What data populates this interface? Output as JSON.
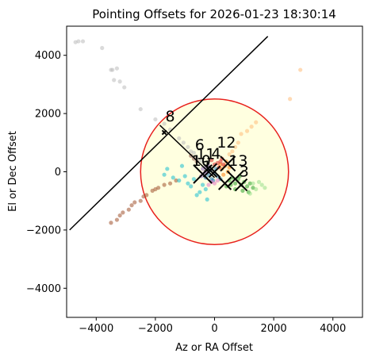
{
  "chart_data": {
    "type": "scatter",
    "title": "Pointing Offsets for 2026-01-23 18:30:14",
    "xlabel": "Az or RA Offset",
    "ylabel": "El or Dec Offset",
    "xlim": [
      -5000,
      5000
    ],
    "ylim": [
      -5000,
      5000
    ],
    "x_ticks": [
      -4000,
      -2000,
      0,
      2000,
      4000
    ],
    "y_ticks": [
      -4000,
      -2000,
      0,
      2000,
      4000
    ],
    "x_tick_labels": [
      "−4000",
      "−2000",
      "0",
      "2000",
      "4000"
    ],
    "y_tick_labels": [
      "−4000",
      "−2000",
      "0",
      "2000",
      "4000"
    ],
    "grid": false,
    "circle": {
      "center": [
        0,
        0
      ],
      "radius": 2500,
      "fill": "#ffffe0",
      "stroke": "#e8211d"
    },
    "reference_line": {
      "x": [
        -4900,
        1800
      ],
      "y": [
        -2000,
        4650
      ],
      "color": "#000000"
    },
    "perpendicular_line": {
      "x": [
        -1850,
        0
      ],
      "y": [
        1600,
        -200
      ],
      "color": "#000000"
    },
    "series": [
      {
        "color": "#bcbcbc",
        "points": [
          [
            -4700,
            4450
          ],
          [
            -4600,
            4480
          ],
          [
            -4450,
            4480
          ],
          [
            -3800,
            4250
          ],
          [
            -3450,
            3500
          ],
          [
            -3300,
            3550
          ],
          [
            -3400,
            3150
          ],
          [
            -3200,
            3100
          ],
          [
            -3050,
            2900
          ],
          [
            -2500,
            2150
          ],
          [
            -3500,
            3500
          ],
          [
            -2000,
            1800
          ],
          [
            -1700,
            1650
          ],
          [
            -1500,
            1450
          ],
          [
            -1200,
            1150
          ],
          [
            -1050,
            1000
          ],
          [
            -900,
            850
          ],
          [
            -800,
            700
          ],
          [
            -700,
            650
          ],
          [
            -600,
            500
          ],
          [
            -500,
            400
          ],
          [
            -400,
            350
          ]
        ]
      },
      {
        "color": "#ffbb78",
        "points": [
          [
            2900,
            3500
          ],
          [
            2550,
            2500
          ],
          [
            1400,
            1700
          ],
          [
            1250,
            1550
          ],
          [
            900,
            1300
          ],
          [
            1100,
            1400
          ],
          [
            800,
            1000
          ],
          [
            700,
            850
          ],
          [
            600,
            700
          ],
          [
            500,
            600
          ]
        ]
      },
      {
        "color": "#a0522d",
        "points": [
          [
            -3500,
            -1750
          ],
          [
            -3300,
            -1650
          ],
          [
            -3100,
            -1400
          ],
          [
            -2900,
            -1300
          ],
          [
            -2700,
            -1050
          ],
          [
            -2500,
            -1000
          ],
          [
            -2300,
            -800
          ],
          [
            -2100,
            -650
          ],
          [
            -1900,
            -550
          ],
          [
            -1700,
            -450
          ],
          [
            -1500,
            -400
          ],
          [
            -1300,
            -300
          ],
          [
            -3200,
            -1500
          ],
          [
            -2800,
            -1150
          ],
          [
            -2400,
            -850
          ],
          [
            -2000,
            -600
          ]
        ]
      },
      {
        "color": "#17becf",
        "points": [
          [
            -1400,
            -200
          ],
          [
            -1200,
            -300
          ],
          [
            -1000,
            -150
          ],
          [
            -900,
            -400
          ],
          [
            -800,
            -500
          ],
          [
            -700,
            -250
          ],
          [
            -600,
            -800
          ],
          [
            -500,
            -700
          ],
          [
            -400,
            -450
          ],
          [
            -300,
            -600
          ],
          [
            -250,
            -950
          ],
          [
            -1600,
            100
          ],
          [
            -1700,
            -100
          ],
          [
            -1100,
            200
          ]
        ]
      },
      {
        "color": "#1f77b4",
        "points": [
          [
            -300,
            -200
          ],
          [
            -200,
            -100
          ],
          [
            -100,
            -250
          ],
          [
            0,
            -50
          ],
          [
            100,
            -150
          ],
          [
            -150,
            50
          ],
          [
            50,
            100
          ],
          [
            -50,
            -300
          ],
          [
            200,
            -250
          ]
        ]
      },
      {
        "color": "#9467bd",
        "points": [
          [
            -400,
            100
          ],
          [
            -300,
            150
          ],
          [
            -350,
            -50
          ],
          [
            -250,
            0
          ],
          [
            -200,
            200
          ],
          [
            -450,
            -150
          ]
        ]
      },
      {
        "color": "#ff7f0e",
        "points": [
          [
            250,
            100
          ],
          [
            350,
            200
          ],
          [
            450,
            0
          ],
          [
            300,
            -100
          ],
          [
            200,
            250
          ],
          [
            400,
            350
          ],
          [
            500,
            150
          ]
        ]
      },
      {
        "color": "#d62728",
        "points": [
          [
            100,
            300
          ],
          [
            200,
            350
          ],
          [
            300,
            250
          ],
          [
            150,
            150
          ],
          [
            250,
            450
          ],
          [
            -100,
            400
          ],
          [
            0,
            250
          ]
        ]
      },
      {
        "color": "#2ca02c",
        "points": [
          [
            500,
            -300
          ],
          [
            700,
            -400
          ],
          [
            900,
            -450
          ],
          [
            1100,
            -500
          ],
          [
            1300,
            -550
          ],
          [
            600,
            -200
          ],
          [
            800,
            -250
          ],
          [
            1000,
            -350
          ],
          [
            1200,
            -400
          ],
          [
            400,
            -500
          ],
          [
            700,
            -600
          ],
          [
            950,
            -650
          ],
          [
            1150,
            -700
          ],
          [
            550,
            -450
          ],
          [
            850,
            -150
          ]
        ]
      },
      {
        "color": "#98df8a",
        "points": [
          [
            1300,
            -400
          ],
          [
            1500,
            -350
          ],
          [
            1600,
            -450
          ],
          [
            1400,
            -600
          ],
          [
            1700,
            -550
          ],
          [
            1200,
            -750
          ]
        ]
      },
      {
        "color": "#e377c2",
        "points": [
          [
            -100,
            -350
          ],
          [
            0,
            -400
          ],
          [
            100,
            -300
          ],
          [
            -200,
            -450
          ]
        ]
      },
      {
        "color": "#8c564b",
        "points": [
          [
            -700,
            450
          ],
          [
            -600,
            350
          ],
          [
            -800,
            550
          ]
        ]
      }
    ],
    "cross_markers": [
      {
        "label": "",
        "x": -1700,
        "y": 1350,
        "size": 140,
        "color": "#000000"
      },
      {
        "label": "",
        "x": -400,
        "y": -80,
        "size": 620,
        "color": "#000000"
      },
      {
        "label": "",
        "x": -150,
        "y": 50,
        "size": 450,
        "color": "#000000"
      },
      {
        "label": "",
        "x": 450,
        "y": 280,
        "size": 500,
        "color": "#000000"
      },
      {
        "label": "",
        "x": 700,
        "y": -250,
        "size": 540,
        "color": "#000000"
      },
      {
        "label": "",
        "x": 350,
        "y": -400,
        "size": 420,
        "color": "#000000"
      },
      {
        "label": "",
        "x": 900,
        "y": -450,
        "size": 400,
        "color": "#000000"
      },
      {
        "label": "",
        "x": 0,
        "y": 0,
        "size": 380,
        "color": "#000000"
      }
    ],
    "cluster_labels": [
      {
        "text": "8",
        "x": -1500,
        "y": 1730
      },
      {
        "text": "6",
        "x": -500,
        "y": 750
      },
      {
        "text": "12",
        "x": 400,
        "y": 830
      },
      {
        "text": "11",
        "x": -300,
        "y": 440
      },
      {
        "text": "4",
        "x": 50,
        "y": 450
      },
      {
        "text": "10",
        "x": -450,
        "y": 200
      },
      {
        "text": "13",
        "x": 800,
        "y": 200
      },
      {
        "text": "3",
        "x": 1000,
        "y": -170
      },
      {
        "text": "1",
        "x": -250,
        "y": 20
      }
    ]
  }
}
